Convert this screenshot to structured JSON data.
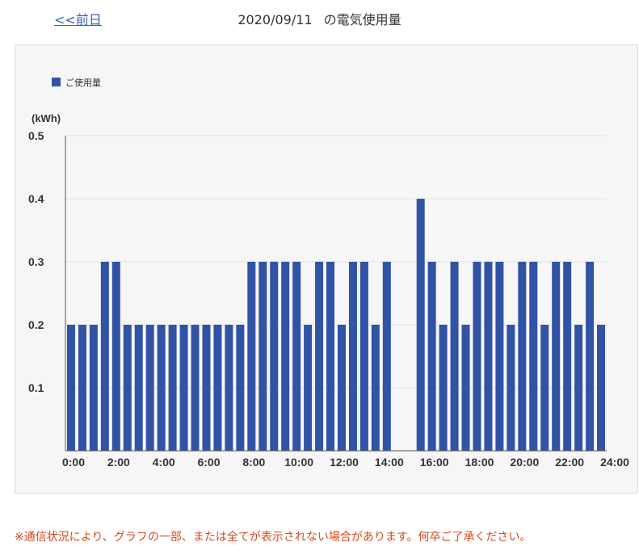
{
  "nav": {
    "prev_label": "<<前日"
  },
  "header": {
    "date": "2020/09/11",
    "title": "の電気使用量"
  },
  "chart_data": {
    "type": "bar",
    "ylabel": "(kWh)",
    "ylim": [
      0,
      0.5
    ],
    "yticks": [
      "0.5",
      "0.4",
      "0.3",
      "0.2",
      "0.1"
    ],
    "xticks": [
      "0:00",
      "2:00",
      "4:00",
      "6:00",
      "8:00",
      "10:00",
      "12:00",
      "14:00",
      "16:00",
      "18:00",
      "20:00",
      "22:00",
      "24:00"
    ],
    "grid": true,
    "legend_position": "top-left",
    "series": [
      {
        "name": "ご使用量",
        "color": "#3153a5",
        "values": [
          0.2,
          0.2,
          0.2,
          0.3,
          0.3,
          0.2,
          0.2,
          0.2,
          0.2,
          0.2,
          0.2,
          0.2,
          0.2,
          0.2,
          0.2,
          0.2,
          0.3,
          0.3,
          0.3,
          0.3,
          0.3,
          0.2,
          0.3,
          0.3,
          0.2,
          0.3,
          0.3,
          0.2,
          0.3,
          null,
          null,
          0.4,
          0.3,
          0.2,
          0.3,
          0.2,
          0.3,
          0.3,
          0.3,
          0.2,
          0.3,
          0.3,
          0.2,
          0.3,
          0.3,
          0.2,
          0.3,
          0.2
        ]
      }
    ]
  },
  "footer": {
    "note": "※通信状況により、グラフの一部、または全てが表示されない場合があります。何卒ご了承ください。"
  }
}
